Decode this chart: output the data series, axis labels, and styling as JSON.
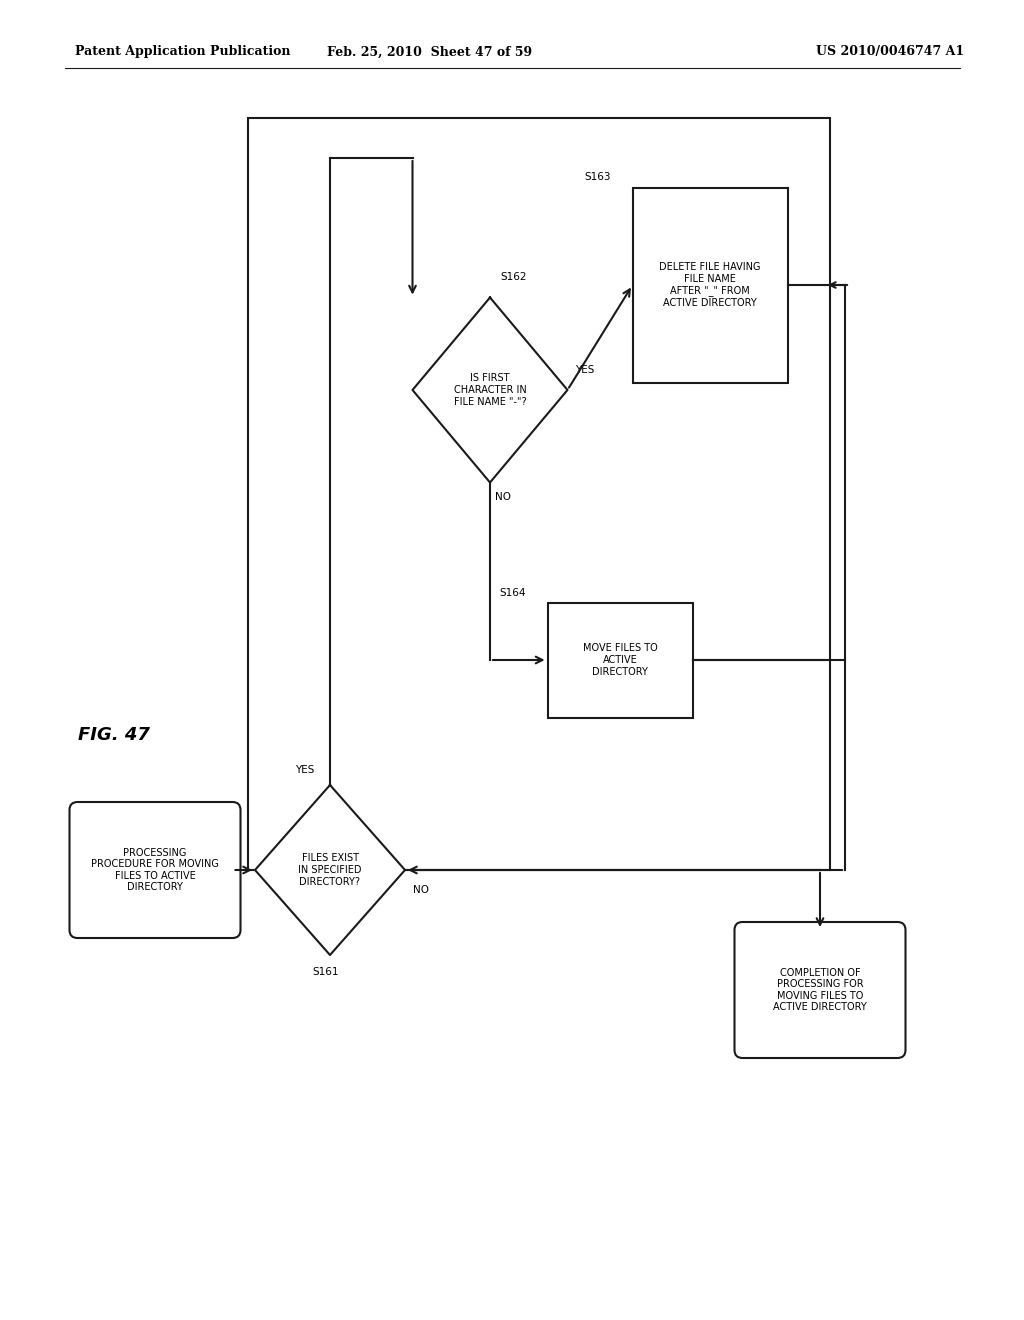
{
  "header_left": "Patent Application Publication",
  "header_middle": "Feb. 25, 2010  Sheet 47 of 59",
  "header_right": "US 2010/0046747 A1",
  "fig_label": "FIG. 47",
  "background_color": "#ffffff",
  "line_color": "#1a1a1a",
  "start_text": "PROCESSING\nPROCEDURE FOR MOVING\nFILES TO ACTIVE\nDIRECTORY",
  "end_text": "COMPLETION OF\nPROCESSING FOR\nMOVING FILES TO\nACTIVE DIRECTORY",
  "d1_text": "FILES EXIST\nIN SPECIFIED\nDIRECTORY?",
  "d1_label": "S161",
  "d2_text": "IS FIRST\nCHARACTER IN\nFILE NAME \"-\"?",
  "d2_label": "S162",
  "s163_text": "DELETE FILE HAVING\nFILE NAME\nAFTER \"_\" FROM\nACTIVE DIRECTORY",
  "s163_label": "S163",
  "s164_text": "MOVE FILES TO\nACTIVE\nDIRECTORY",
  "s164_label": "S164"
}
